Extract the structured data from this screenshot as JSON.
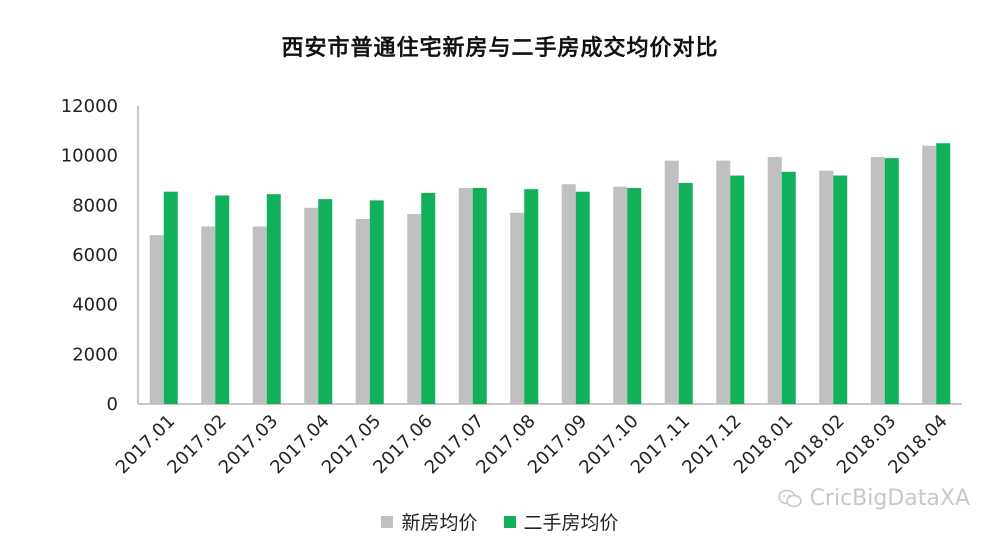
{
  "chart_data": {
    "type": "bar",
    "title": "西安市普通住宅新房与二手房成交均价对比",
    "categories": [
      "2017.01",
      "2017.02",
      "2017.03",
      "2017.04",
      "2017.05",
      "2017.06",
      "2017.07",
      "2017.08",
      "2017.09",
      "2017.10",
      "2017.11",
      "2017.12",
      "2018.01",
      "2018.02",
      "2018.03",
      "2018.04"
    ],
    "series": [
      {
        "name": "新房均价",
        "color": "#c0c0c0",
        "values": [
          6800,
          7150,
          7150,
          7900,
          7450,
          7650,
          8700,
          7700,
          8850,
          8750,
          9800,
          9800,
          9950,
          9400,
          9950,
          10400
        ]
      },
      {
        "name": "二手房均价",
        "color": "#12b05a",
        "values": [
          8550,
          8400,
          8450,
          8250,
          8200,
          8500,
          8700,
          8650,
          8550,
          8700,
          8900,
          9200,
          9350,
          9200,
          9900,
          10500
        ]
      }
    ],
    "ylim": [
      0,
      12000
    ],
    "yticks": [
      0,
      2000,
      4000,
      6000,
      8000,
      10000,
      12000
    ],
    "xlabel": "",
    "ylabel": "",
    "grid": false,
    "legend": "bottom"
  },
  "watermark": {
    "text": "CricBigDataXA",
    "icon": "wechat-icon"
  }
}
